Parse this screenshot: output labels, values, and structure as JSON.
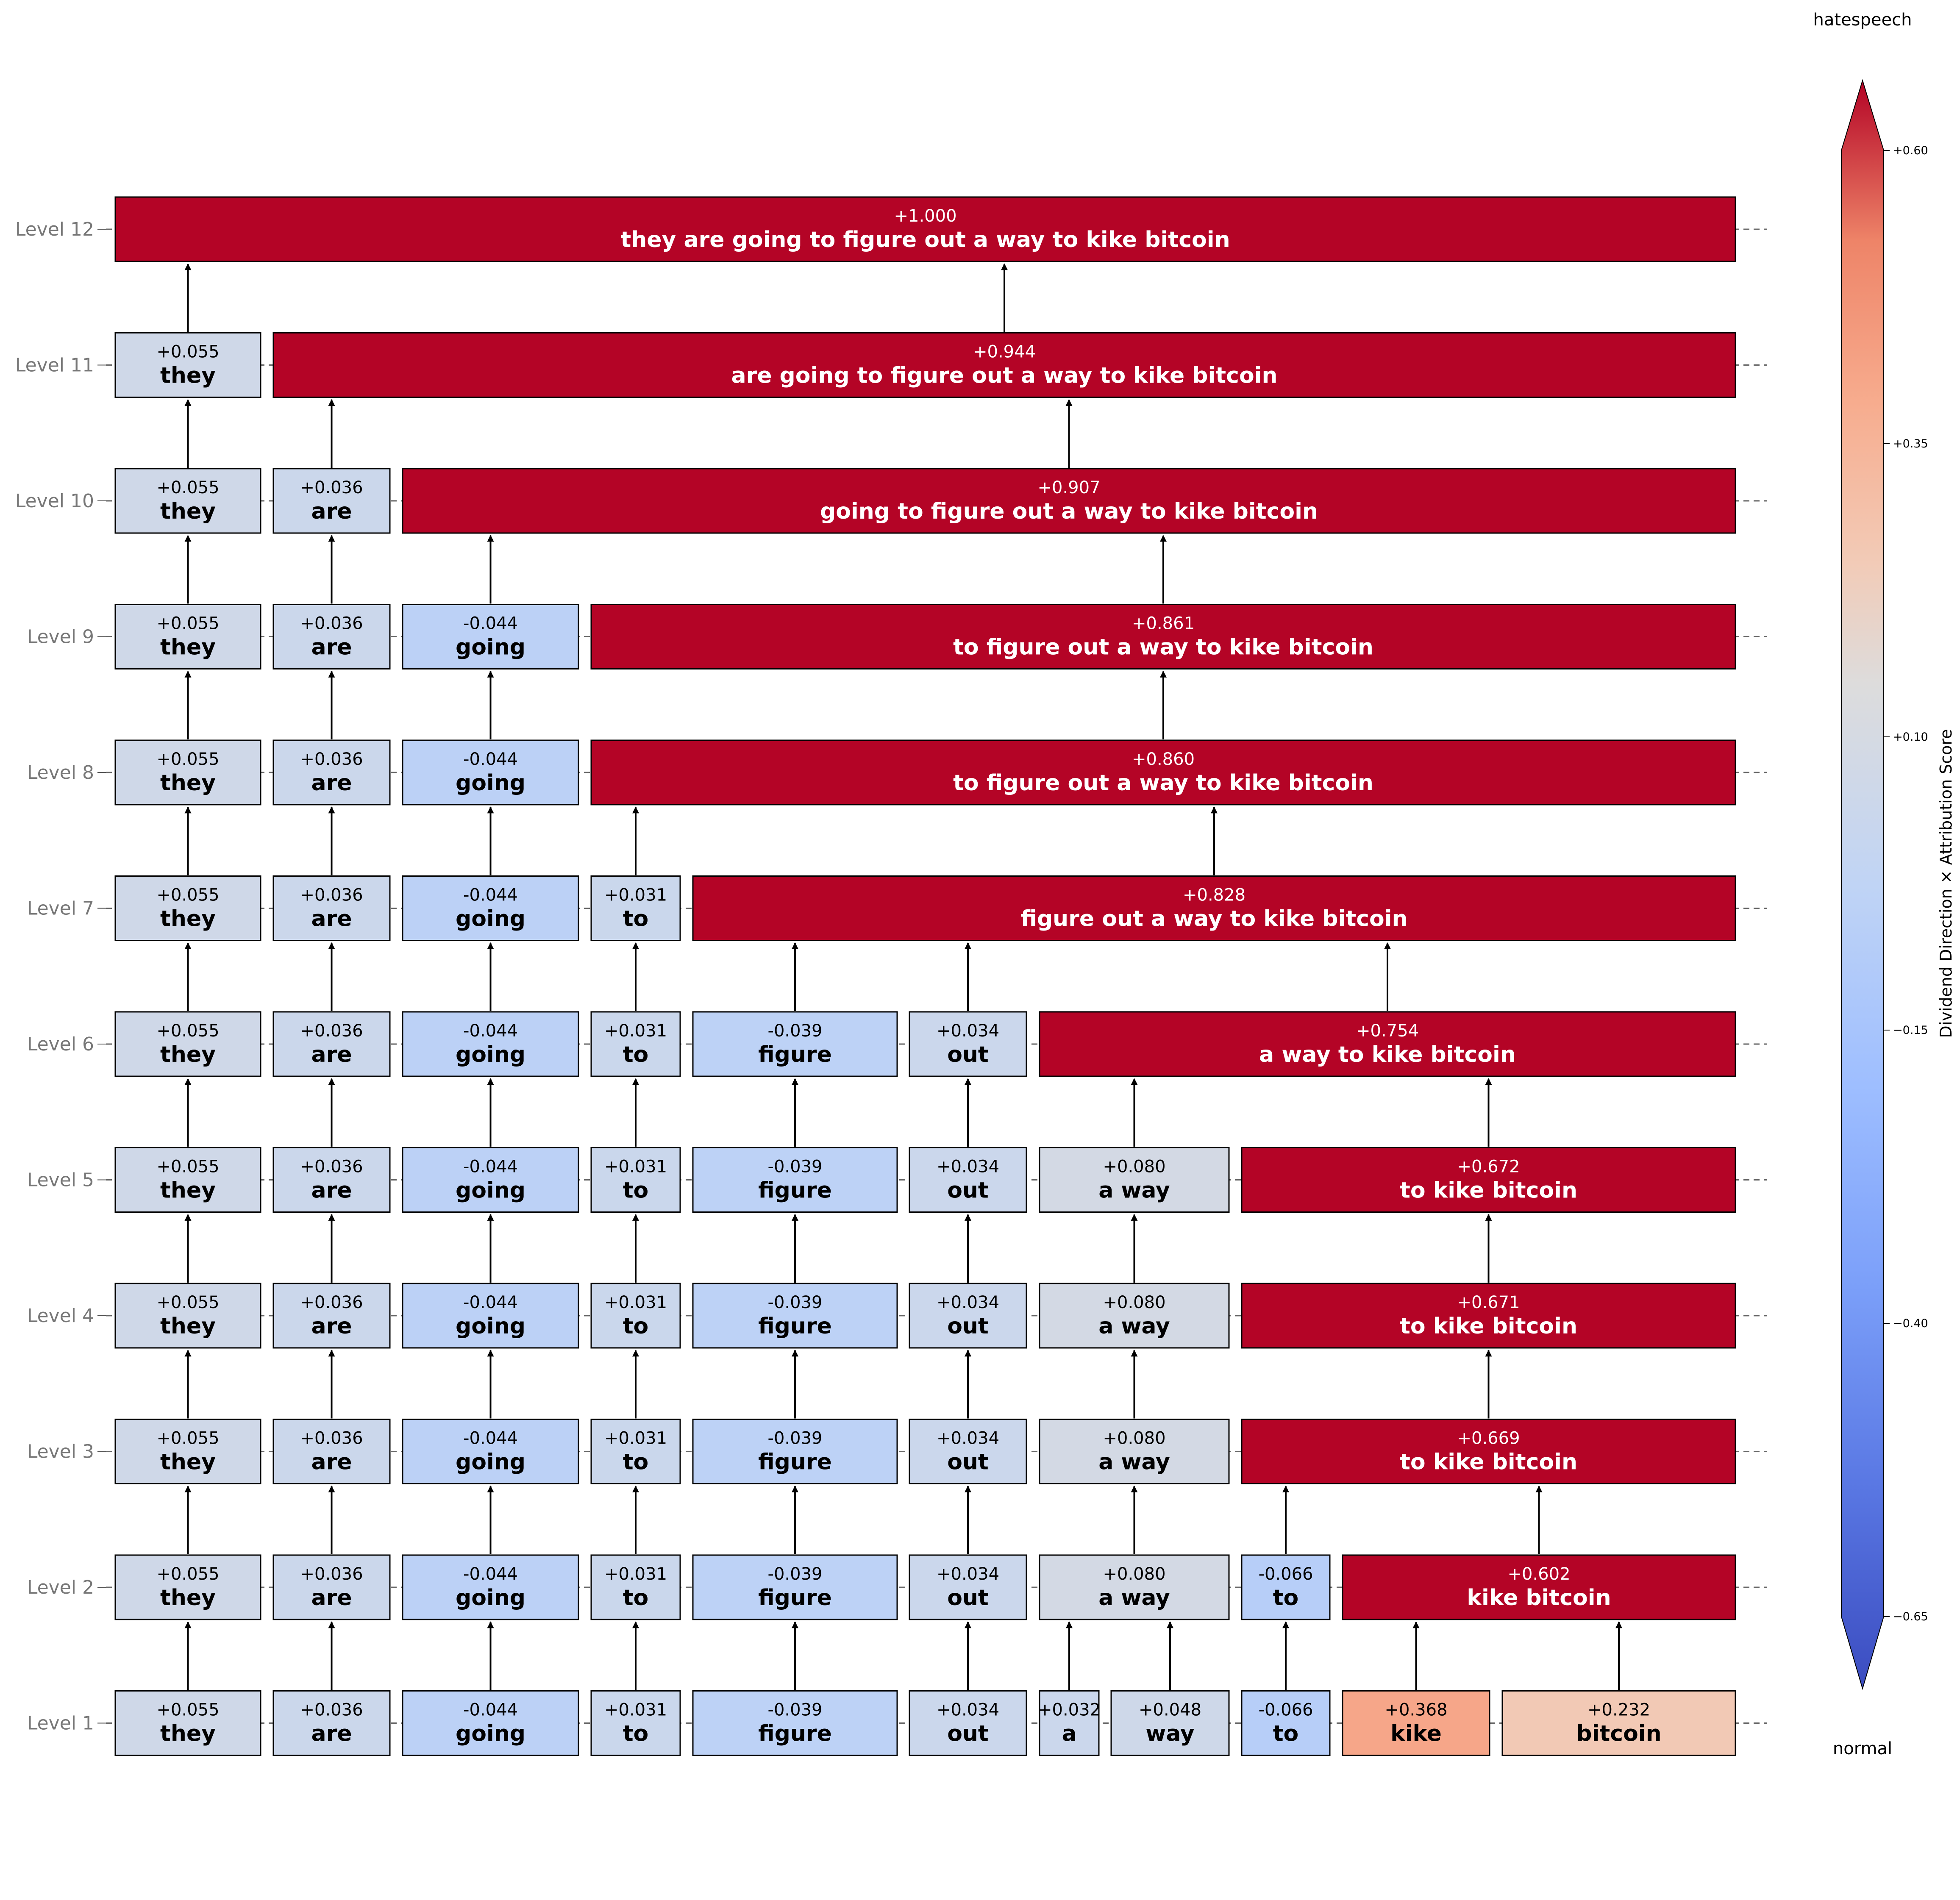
{
  "levels": [
    {
      "label": "Level 12",
      "nodes": [
        {
          "text": "they are going to figure out a way to kike bitcoin",
          "score": "+1.000",
          "value": 1.0
        }
      ]
    },
    {
      "label": "Level 11",
      "nodes": [
        {
          "text": "they",
          "score": "+0.055",
          "value": 0.055
        },
        {
          "text": "are going to figure out a way to kike bitcoin",
          "score": "+0.944",
          "value": 0.944
        }
      ]
    },
    {
      "label": "Level 10",
      "nodes": [
        {
          "text": "they",
          "score": "+0.055",
          "value": 0.055
        },
        {
          "text": "are",
          "score": "+0.036",
          "value": 0.036
        },
        {
          "text": "going to figure out a way to kike bitcoin",
          "score": "+0.907",
          "value": 0.907
        }
      ]
    },
    {
      "label": "Level 9",
      "nodes": [
        {
          "text": "they",
          "score": "+0.055",
          "value": 0.055
        },
        {
          "text": "are",
          "score": "+0.036",
          "value": 0.036
        },
        {
          "text": "going",
          "score": "-0.044",
          "value": -0.044
        },
        {
          "text": "to figure out a way to kike bitcoin",
          "score": "+0.861",
          "value": 0.861
        }
      ]
    },
    {
      "label": "Level 8",
      "nodes": [
        {
          "text": "they",
          "score": "+0.055",
          "value": 0.055
        },
        {
          "text": "are",
          "score": "+0.036",
          "value": 0.036
        },
        {
          "text": "going",
          "score": "-0.044",
          "value": -0.044
        },
        {
          "text": "to figure out a way to kike bitcoin",
          "score": "+0.860",
          "value": 0.86
        }
      ]
    },
    {
      "label": "Level 7",
      "nodes": [
        {
          "text": "they",
          "score": "+0.055",
          "value": 0.055
        },
        {
          "text": "are",
          "score": "+0.036",
          "value": 0.036
        },
        {
          "text": "going",
          "score": "-0.044",
          "value": -0.044
        },
        {
          "text": "to",
          "score": "+0.031",
          "value": 0.031
        },
        {
          "text": "figure out a way to kike bitcoin",
          "score": "+0.828",
          "value": 0.828
        }
      ]
    },
    {
      "label": "Level 6",
      "nodes": [
        {
          "text": "they",
          "score": "+0.055",
          "value": 0.055
        },
        {
          "text": "are",
          "score": "+0.036",
          "value": 0.036
        },
        {
          "text": "going",
          "score": "-0.044",
          "value": -0.044
        },
        {
          "text": "to",
          "score": "+0.031",
          "value": 0.031
        },
        {
          "text": "figure",
          "score": "-0.039",
          "value": -0.039
        },
        {
          "text": "out",
          "score": "+0.034",
          "value": 0.034
        },
        {
          "text": "a way to kike bitcoin",
          "score": "+0.754",
          "value": 0.754
        }
      ]
    },
    {
      "label": "Level 5",
      "nodes": [
        {
          "text": "they",
          "score": "+0.055",
          "value": 0.055
        },
        {
          "text": "are",
          "score": "+0.036",
          "value": 0.036
        },
        {
          "text": "going",
          "score": "-0.044",
          "value": -0.044
        },
        {
          "text": "to",
          "score": "+0.031",
          "value": 0.031
        },
        {
          "text": "figure",
          "score": "-0.039",
          "value": -0.039
        },
        {
          "text": "out",
          "score": "+0.034",
          "value": 0.034
        },
        {
          "text": "a way",
          "score": "+0.080",
          "value": 0.08
        },
        {
          "text": "to kike bitcoin",
          "score": "+0.672",
          "value": 0.672
        }
      ]
    },
    {
      "label": "Level 4",
      "nodes": [
        {
          "text": "they",
          "score": "+0.055",
          "value": 0.055
        },
        {
          "text": "are",
          "score": "+0.036",
          "value": 0.036
        },
        {
          "text": "going",
          "score": "-0.044",
          "value": -0.044
        },
        {
          "text": "to",
          "score": "+0.031",
          "value": 0.031
        },
        {
          "text": "figure",
          "score": "-0.039",
          "value": -0.039
        },
        {
          "text": "out",
          "score": "+0.034",
          "value": 0.034
        },
        {
          "text": "a way",
          "score": "+0.080",
          "value": 0.08
        },
        {
          "text": "to kike bitcoin",
          "score": "+0.671",
          "value": 0.671
        }
      ]
    },
    {
      "label": "Level 3",
      "nodes": [
        {
          "text": "they",
          "score": "+0.055",
          "value": 0.055
        },
        {
          "text": "are",
          "score": "+0.036",
          "value": 0.036
        },
        {
          "text": "going",
          "score": "-0.044",
          "value": -0.044
        },
        {
          "text": "to",
          "score": "+0.031",
          "value": 0.031
        },
        {
          "text": "figure",
          "score": "-0.039",
          "value": -0.039
        },
        {
          "text": "out",
          "score": "+0.034",
          "value": 0.034
        },
        {
          "text": "a way",
          "score": "+0.080",
          "value": 0.08
        },
        {
          "text": "to kike bitcoin",
          "score": "+0.669",
          "value": 0.669
        }
      ]
    },
    {
      "label": "Level 2",
      "nodes": [
        {
          "text": "they",
          "score": "+0.055",
          "value": 0.055
        },
        {
          "text": "are",
          "score": "+0.036",
          "value": 0.036
        },
        {
          "text": "going",
          "score": "-0.044",
          "value": -0.044
        },
        {
          "text": "to",
          "score": "+0.031",
          "value": 0.031
        },
        {
          "text": "figure",
          "score": "-0.039",
          "value": -0.039
        },
        {
          "text": "out",
          "score": "+0.034",
          "value": 0.034
        },
        {
          "text": "a way",
          "score": "+0.080",
          "value": 0.08
        },
        {
          "text": "to",
          "score": "-0.066",
          "value": -0.066
        },
        {
          "text": "kike bitcoin",
          "score": "+0.602",
          "value": 0.602
        }
      ]
    },
    {
      "label": "Level 1",
      "nodes": [
        {
          "text": "they",
          "score": "+0.055",
          "value": 0.055
        },
        {
          "text": "are",
          "score": "+0.036",
          "value": 0.036
        },
        {
          "text": "going",
          "score": "-0.044",
          "value": -0.044
        },
        {
          "text": "to",
          "score": "+0.031",
          "value": 0.031
        },
        {
          "text": "figure",
          "score": "-0.039",
          "value": -0.039
        },
        {
          "text": "out",
          "score": "+0.034",
          "value": 0.034
        },
        {
          "text": "a",
          "score": "+0.032",
          "value": 0.032
        },
        {
          "text": "way",
          "score": "+0.048",
          "value": 0.048
        },
        {
          "text": "to",
          "score": "-0.066",
          "value": -0.066
        },
        {
          "text": "kike",
          "score": "+0.368",
          "value": 0.368
        },
        {
          "text": "bitcoin",
          "score": "+0.232",
          "value": 0.232
        }
      ]
    }
  ],
  "colorbar": {
    "label": "Dividend Direction × Attribution Score",
    "top_class": "hatespeech",
    "bottom_class": "normal",
    "ticks": [
      "+0.60",
      "+0.35",
      "+0.10",
      "−0.15",
      "−0.40",
      "−0.65"
    ],
    "tick_values": [
      0.6,
      0.35,
      0.1,
      -0.15,
      -0.4,
      -0.65
    ],
    "range": [
      -0.65,
      0.6
    ],
    "colormap": "coolwarm",
    "colors": {
      "low": "#3b4cc0",
      "mid": "#dddcdc",
      "high": "#b40426"
    }
  }
}
